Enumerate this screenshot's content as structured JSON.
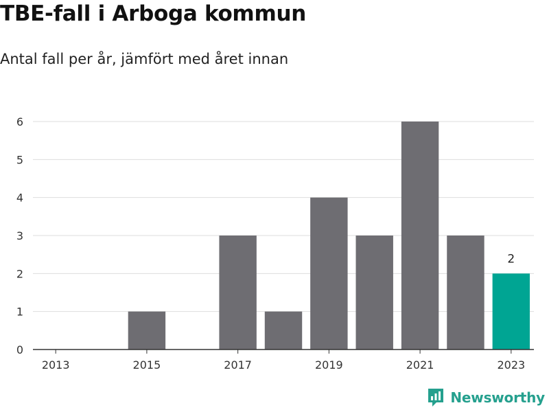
{
  "header": {
    "title": "TBE-fall i Arboga kommun",
    "subtitle": "Antal fall per år, jämfört med året innan"
  },
  "brand": {
    "name": "Newsworthy"
  },
  "colors": {
    "bar": "#6e6d72",
    "highlight": "#00a593",
    "grid": "#dddddd",
    "axis": "#333333",
    "brand": "#25a08e"
  },
  "chart_data": {
    "type": "bar",
    "categories": [
      2013,
      2014,
      2015,
      2016,
      2017,
      2018,
      2019,
      2020,
      2021,
      2022,
      2023
    ],
    "values": [
      0,
      0,
      1,
      0,
      3,
      1,
      4,
      3,
      6,
      3,
      2
    ],
    "highlight_category": 2023,
    "highlight_label": "2",
    "x_tick_labels": [
      "2013",
      "2015",
      "2017",
      "2019",
      "2021",
      "2023"
    ],
    "y_ticks": [
      0,
      1,
      2,
      3,
      4,
      5,
      6
    ],
    "ylim": [
      0,
      6
    ],
    "title": "TBE-fall i Arboga kommun",
    "subtitle": "Antal fall per år, jämfört med året innan",
    "xlabel": "",
    "ylabel": "",
    "grid": true,
    "legend": "none"
  }
}
